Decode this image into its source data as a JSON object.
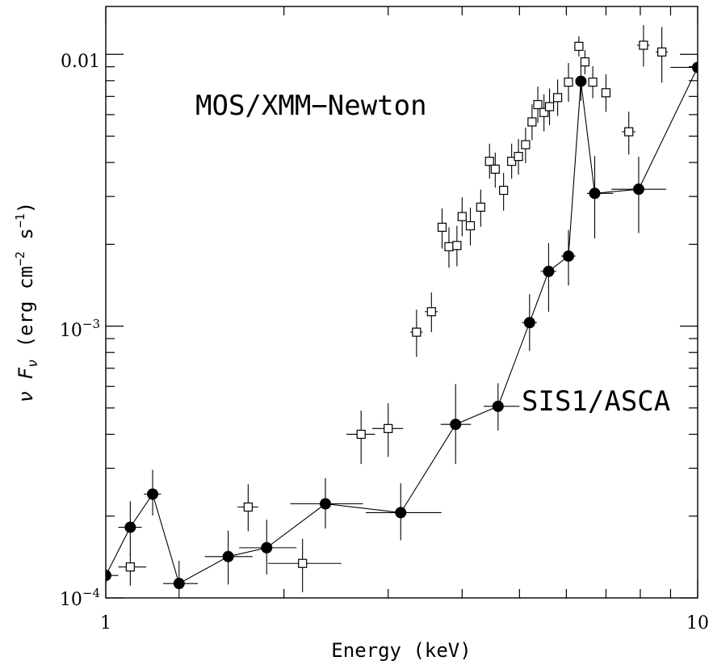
{
  "chart_data": {
    "type": "scatter",
    "xlabel": "Energy (keV)",
    "ylabel": "ν F_ν (erg cm^-2 s^-1)",
    "ylabel_parts": {
      "prefix": "ν F",
      "sub": "ν",
      "open": " (erg cm",
      "exp1": "−2",
      "mid": " s",
      "exp2": "−1",
      "close": ")"
    },
    "x_scale": "log",
    "y_scale": "log",
    "xlim": [
      1,
      10
    ],
    "ylim": [
      0.0001,
      0.015
    ],
    "x_tick_labels": [
      "1",
      "10"
    ],
    "y_tick_labels": [
      {
        "base": "10",
        "exp": "−4"
      },
      {
        "base": "10",
        "exp": "−3"
      },
      {
        "text": "0.01"
      }
    ],
    "annotations": [
      "MOS/XMM−Newton",
      "SIS1/ASCA"
    ],
    "series": [
      {
        "name": "MOS/XMM−Newton",
        "marker": "open-square",
        "connected": false,
        "points": [
          {
            "x": 1.1,
            "y": 0.00013,
            "xlo": 1.05,
            "xhi": 1.17,
            "ylo": 0.000111,
            "yhi": 0.000146
          },
          {
            "x": 1.74,
            "y": 0.000216,
            "xlo": 1.67,
            "xhi": 1.81,
            "ylo": 0.000176,
            "yhi": 0.000262
          },
          {
            "x": 2.15,
            "y": 0.000134,
            "xlo": 1.88,
            "xhi": 2.5,
            "ylo": 0.000105,
            "yhi": 0.000165
          },
          {
            "x": 2.7,
            "y": 0.0004,
            "xlo": 2.55,
            "xhi": 2.85,
            "ylo": 0.000311,
            "yhi": 0.000489
          },
          {
            "x": 3.0,
            "y": 0.00042,
            "xlo": 2.82,
            "xhi": 3.18,
            "ylo": 0.00033,
            "yhi": 0.00052
          },
          {
            "x": 3.35,
            "y": 0.00095,
            "xlo": 3.27,
            "xhi": 3.43,
            "ylo": 0.00077,
            "yhi": 0.00115
          },
          {
            "x": 3.55,
            "y": 0.00113,
            "xlo": 3.46,
            "xhi": 3.64,
            "ylo": 0.00095,
            "yhi": 0.00133
          },
          {
            "x": 3.7,
            "y": 0.00231,
            "xlo": 3.65,
            "xhi": 3.75,
            "ylo": 0.00193,
            "yhi": 0.00271
          },
          {
            "x": 3.8,
            "y": 0.00196,
            "xlo": 3.74,
            "xhi": 3.86,
            "ylo": 0.00164,
            "yhi": 0.00231
          },
          {
            "x": 3.92,
            "y": 0.00198,
            "xlo": 3.86,
            "xhi": 3.98,
            "ylo": 0.00166,
            "yhi": 0.00234
          },
          {
            "x": 4.0,
            "y": 0.00253,
            "xlo": 3.95,
            "xhi": 4.05,
            "ylo": 0.00214,
            "yhi": 0.00298
          },
          {
            "x": 4.13,
            "y": 0.00234,
            "xlo": 4.07,
            "xhi": 4.19,
            "ylo": 0.00198,
            "yhi": 0.00273
          },
          {
            "x": 4.3,
            "y": 0.00274,
            "xlo": 4.23,
            "xhi": 4.37,
            "ylo": 0.00232,
            "yhi": 0.00318
          },
          {
            "x": 4.45,
            "y": 0.00404,
            "xlo": 4.39,
            "xhi": 4.51,
            "ylo": 0.00349,
            "yhi": 0.00469
          },
          {
            "x": 4.55,
            "y": 0.00378,
            "xlo": 4.49,
            "xhi": 4.61,
            "ylo": 0.00323,
            "yhi": 0.00435
          },
          {
            "x": 4.7,
            "y": 0.00316,
            "xlo": 4.63,
            "xhi": 4.77,
            "ylo": 0.00266,
            "yhi": 0.00366
          },
          {
            "x": 4.85,
            "y": 0.00404,
            "xlo": 4.78,
            "xhi": 4.92,
            "ylo": 0.00349,
            "yhi": 0.00469
          },
          {
            "x": 4.98,
            "y": 0.00421,
            "xlo": 4.91,
            "xhi": 5.05,
            "ylo": 0.00361,
            "yhi": 0.00488
          },
          {
            "x": 5.12,
            "y": 0.00465,
            "xlo": 5.05,
            "xhi": 5.19,
            "ylo": 0.00398,
            "yhi": 0.00538
          },
          {
            "x": 5.25,
            "y": 0.00564,
            "xlo": 5.19,
            "xhi": 5.31,
            "ylo": 0.00483,
            "yhi": 0.00655
          },
          {
            "x": 5.37,
            "y": 0.00653,
            "xlo": 5.31,
            "xhi": 5.43,
            "ylo": 0.0056,
            "yhi": 0.0076
          },
          {
            "x": 5.5,
            "y": 0.00611,
            "xlo": 5.44,
            "xhi": 5.56,
            "ylo": 0.00521,
            "yhi": 0.00712
          },
          {
            "x": 5.62,
            "y": 0.00642,
            "xlo": 5.56,
            "xhi": 5.68,
            "ylo": 0.00549,
            "yhi": 0.00749
          },
          {
            "x": 5.8,
            "y": 0.00693,
            "xlo": 5.73,
            "xhi": 5.87,
            "ylo": 0.00594,
            "yhi": 0.00808
          },
          {
            "x": 6.05,
            "y": 0.0079,
            "xlo": 5.97,
            "xhi": 6.13,
            "ylo": 0.00669,
            "yhi": 0.00929
          },
          {
            "x": 6.3,
            "y": 0.0107,
            "xlo": 6.22,
            "xhi": 6.38,
            "ylo": 0.00982,
            "yhi": 0.01165
          },
          {
            "x": 6.45,
            "y": 0.00938,
            "xlo": 6.37,
            "xhi": 6.53,
            "ylo": 0.00844,
            "yhi": 0.01035
          },
          {
            "x": 6.65,
            "y": 0.0079,
            "xlo": 6.55,
            "xhi": 6.75,
            "ylo": 0.00689,
            "yhi": 0.00904
          },
          {
            "x": 7.0,
            "y": 0.00722,
            "xlo": 6.88,
            "xhi": 7.12,
            "ylo": 0.00614,
            "yhi": 0.00844
          },
          {
            "x": 7.65,
            "y": 0.00519,
            "xlo": 7.45,
            "xhi": 7.85,
            "ylo": 0.00428,
            "yhi": 0.00615
          },
          {
            "x": 8.1,
            "y": 0.0108,
            "xlo": 7.9,
            "xhi": 8.3,
            "ylo": 0.00902,
            "yhi": 0.0128
          },
          {
            "x": 8.7,
            "y": 0.0102,
            "xlo": 8.5,
            "xhi": 8.9,
            "ylo": 0.00787,
            "yhi": 0.0126
          }
        ]
      },
      {
        "name": "SIS1/ASCA",
        "marker": "filled-circle",
        "connected": true,
        "points": [
          {
            "x": 1.0,
            "y": 0.000121,
            "xlo": 0.98,
            "xhi": 1.05,
            "ylo": 0.000112,
            "yhi": 0.000132
          },
          {
            "x": 1.1,
            "y": 0.000182,
            "xlo": 1.05,
            "xhi": 1.15,
            "ylo": 0.000143,
            "yhi": 0.000227
          },
          {
            "x": 1.2,
            "y": 0.000241,
            "xlo": 1.16,
            "xhi": 1.24,
            "ylo": 0.000201,
            "yhi": 0.000296
          },
          {
            "x": 1.33,
            "y": 0.000113,
            "xlo": 1.25,
            "xhi": 1.43,
            "ylo": 9.3e-05,
            "yhi": 0.000137
          },
          {
            "x": 1.61,
            "y": 0.000142,
            "xlo": 1.47,
            "xhi": 1.77,
            "ylo": 0.000112,
            "yhi": 0.000177
          },
          {
            "x": 1.87,
            "y": 0.000153,
            "xlo": 1.68,
            "xhi": 2.1,
            "ylo": 0.000122,
            "yhi": 0.000194
          },
          {
            "x": 2.35,
            "y": 0.000222,
            "xlo": 2.05,
            "xhi": 2.72,
            "ylo": 0.00018,
            "yhi": 0.000276
          },
          {
            "x": 3.15,
            "y": 0.000206,
            "xlo": 2.75,
            "xhi": 3.69,
            "ylo": 0.000163,
            "yhi": 0.000264
          },
          {
            "x": 3.9,
            "y": 0.000435,
            "xlo": 3.68,
            "xhi": 4.14,
            "ylo": 0.000311,
            "yhi": 0.000612
          },
          {
            "x": 4.6,
            "y": 0.000507,
            "xlo": 4.35,
            "xhi": 5.0,
            "ylo": 0.000413,
            "yhi": 0.000616
          },
          {
            "x": 5.2,
            "y": 0.00103,
            "xlo": 5.05,
            "xhi": 5.35,
            "ylo": 0.00081,
            "yhi": 0.00131
          },
          {
            "x": 5.6,
            "y": 0.00159,
            "xlo": 5.43,
            "xhi": 5.77,
            "ylo": 0.00113,
            "yhi": 0.00202
          },
          {
            "x": 6.05,
            "y": 0.00181,
            "xlo": 5.88,
            "xhi": 6.22,
            "ylo": 0.00141,
            "yhi": 0.00226
          },
          {
            "x": 6.35,
            "y": 0.00796,
            "xlo": 6.25,
            "xhi": 6.45,
            "ylo": 0.00674,
            "yhi": 0.00908
          },
          {
            "x": 6.7,
            "y": 0.00308,
            "xlo": 6.5,
            "xhi": 7.2,
            "ylo": 0.0021,
            "yhi": 0.00422
          },
          {
            "x": 7.95,
            "y": 0.00319,
            "xlo": 7.15,
            "xhi": 8.85,
            "ylo": 0.0022,
            "yhi": 0.0042
          },
          {
            "x": 10.0,
            "y": 0.00895,
            "xlo": 9.0,
            "xhi": 11.0,
            "ylo": 0.008,
            "yhi": 0.0098
          }
        ]
      }
    ]
  }
}
